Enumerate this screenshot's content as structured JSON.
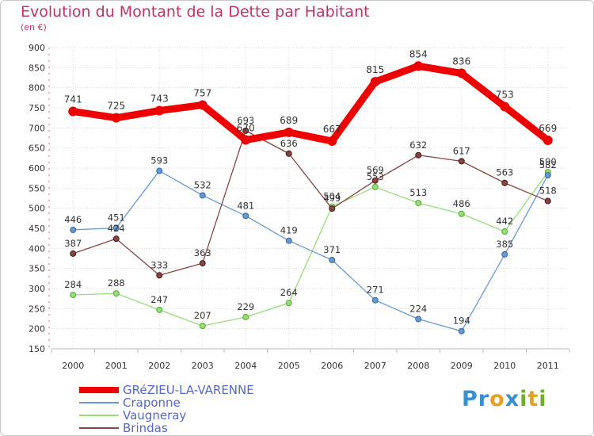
{
  "title": "Evolution du Montant de la Dette par Habitant",
  "unit": "(en €)",
  "logo": {
    "letters": [
      "P",
      "r",
      "o",
      "x",
      "i",
      "t",
      "i"
    ],
    "colors": [
      "#3a8fd0",
      "#3a8fd0",
      "#e8a020",
      "#3a8fd0",
      "#70b030",
      "#e8a020",
      "#70b030"
    ]
  },
  "chart_data": {
    "type": "line",
    "categories": [
      "2000",
      "2001",
      "2002",
      "2003",
      "2004",
      "2005",
      "2006",
      "2007",
      "2008",
      "2009",
      "2010",
      "2011"
    ],
    "ylim": [
      150,
      900
    ],
    "yticks": [
      150,
      200,
      250,
      300,
      350,
      400,
      450,
      500,
      550,
      600,
      650,
      700,
      750,
      800,
      850,
      900
    ],
    "grid": true,
    "legend_position": "bottom-left",
    "series": [
      {
        "name": "Vaugneray",
        "color": "#99dd77",
        "values": [
          284,
          288,
          247,
          207,
          229,
          264,
          504,
          553,
          513,
          486,
          442,
          590
        ]
      },
      {
        "name": "Craponne",
        "color": "#6699cc",
        "values": [
          446,
          451,
          593,
          532,
          481,
          419,
          371,
          271,
          224,
          194,
          385,
          582
        ]
      },
      {
        "name": "Brindas",
        "color": "#884444",
        "values": [
          387,
          424,
          333,
          363,
          693,
          636,
          499,
          569,
          632,
          617,
          563,
          518
        ]
      },
      {
        "name": "GRéZIEU-LA-VARENNE",
        "color": "#ee0000",
        "values": [
          741,
          725,
          743,
          757,
          670,
          689,
          667,
          815,
          854,
          836,
          753,
          669
        ]
      }
    ]
  },
  "legend": [
    {
      "name": "GRéZIEU-LA-VARENNE",
      "color": "#ee0000",
      "text_color": "#5566cc"
    },
    {
      "name": "Craponne",
      "color": "#6699cc",
      "text_color": "#5566cc"
    },
    {
      "name": "Vaugneray",
      "color": "#99dd77",
      "text_color": "#5566cc"
    },
    {
      "name": "Brindas",
      "color": "#884444",
      "text_color": "#5566cc"
    }
  ]
}
